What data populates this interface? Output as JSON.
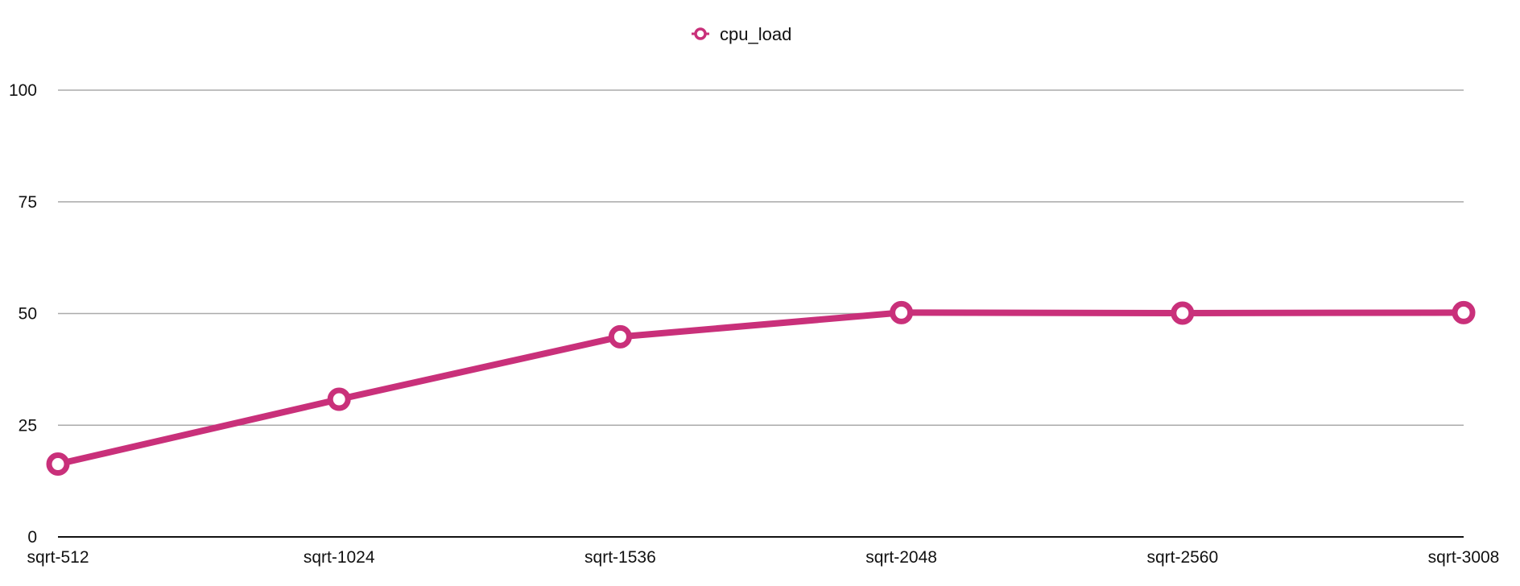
{
  "chart_data": {
    "type": "line",
    "title": "",
    "xlabel": "",
    "ylabel": "",
    "categories": [
      "sqrt-512",
      "sqrt-1024",
      "sqrt-1536",
      "sqrt-2048",
      "sqrt-2560",
      "sqrt-3008"
    ],
    "series": [
      {
        "name": "cpu_load",
        "color": "#C9307A",
        "values": [
          16.3,
          30.8,
          44.8,
          50.2,
          50.1,
          50.2
        ]
      }
    ],
    "ylim": [
      0,
      100
    ],
    "yticks": [
      0,
      25,
      50,
      75,
      100
    ],
    "grid": true,
    "legend_position": "top-center",
    "marker": "hollow-circle"
  }
}
